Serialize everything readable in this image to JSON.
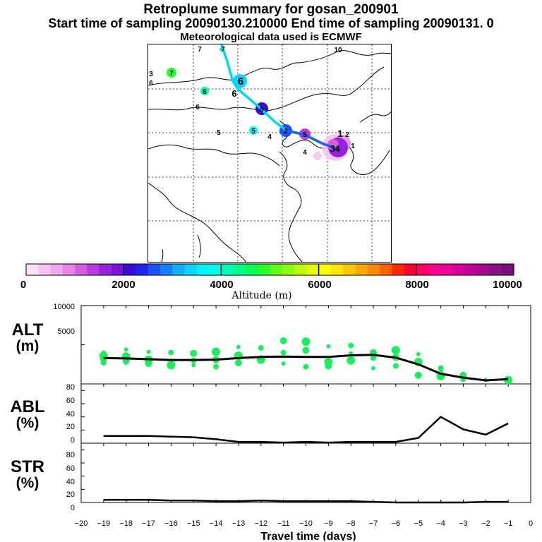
{
  "titles": {
    "line1": "Retroplume summary for gosan_200901",
    "line2": "Start time of sampling 20090130.210000      End time of sampling 20090131.     0",
    "line3": "Meteorological data used is ECMWF"
  },
  "map": {
    "point_labels": [
      "7",
      "7",
      "10",
      "3",
      "7",
      "6",
      "6",
      "6",
      "6",
      "8",
      "5",
      "5",
      "5",
      "6",
      "4",
      "2",
      "4",
      "1",
      "4",
      "3",
      "2",
      "1"
    ]
  },
  "colorbar": {
    "title": "Altitude (m)",
    "min": 0,
    "max": 10000,
    "tick_labels": [
      "0",
      "2000",
      "4000",
      "6000",
      "8000",
      "10000"
    ],
    "colors": [
      "#f9dff9",
      "#f5c2f5",
      "#eea6ee",
      "#e585e8",
      "#d45ee0",
      "#bb3ae0",
      "#9a1fe0",
      "#7a10e0",
      "#3c09d8",
      "#2323ee",
      "#1a52ff",
      "#1880ff",
      "#12b0ff",
      "#0ad4ff",
      "#00f2ff",
      "#00ffe8",
      "#00ffb5",
      "#00ff87",
      "#00ff55",
      "#2bff2b",
      "#5fff1a",
      "#8cff10",
      "#b8ff08",
      "#e4ff00",
      "#ffff00",
      "#ffe600",
      "#ffc800",
      "#ffaa00",
      "#ff8a00",
      "#ff6000",
      "#ff2a00",
      "#ff0034",
      "#ff0066",
      "#ff0090",
      "#ee0096",
      "#d8009a",
      "#be0496",
      "#a40a90",
      "#8c0f88",
      "#780f7c"
    ]
  },
  "chart_data": [
    {
      "type": "scatter",
      "panel": "ALT",
      "ylabel": [
        "ALT",
        "(m)"
      ],
      "ylim": [
        0,
        10000
      ],
      "yticks": [
        5000,
        10000
      ],
      "ytick_labels": [
        "5000",
        "10000"
      ],
      "mean_line": {
        "x": [
          -19,
          -18,
          -17,
          -16,
          -15,
          -14,
          -13,
          -12,
          -11,
          -10,
          -9,
          -8,
          -7,
          -6,
          -5,
          -4,
          -3,
          -2,
          -1
        ],
        "y": [
          3300,
          3250,
          3150,
          3050,
          3050,
          3100,
          3300,
          3450,
          3500,
          3450,
          3450,
          3650,
          3700,
          3350,
          2500,
          1300,
          800,
          450,
          600
        ]
      },
      "particles": [
        {
          "x": -19,
          "y": 4000
        },
        {
          "x": -19,
          "y": 3600
        },
        {
          "x": -19,
          "y": 3200
        },
        {
          "x": -19,
          "y": 2700
        },
        {
          "x": -18,
          "y": 4400
        },
        {
          "x": -18,
          "y": 3500
        },
        {
          "x": -18,
          "y": 3000
        },
        {
          "x": -18,
          "y": 2800
        },
        {
          "x": -17,
          "y": 4100
        },
        {
          "x": -17,
          "y": 3100
        },
        {
          "x": -17,
          "y": 2600
        },
        {
          "x": -16,
          "y": 4000
        },
        {
          "x": -16,
          "y": 3000
        },
        {
          "x": -16,
          "y": 2400
        },
        {
          "x": -15,
          "y": 3900
        },
        {
          "x": -15,
          "y": 3000
        },
        {
          "x": -15,
          "y": 2400
        },
        {
          "x": -14,
          "y": 4100
        },
        {
          "x": -14,
          "y": 3100
        },
        {
          "x": -14,
          "y": 2200
        },
        {
          "x": -13,
          "y": 4700
        },
        {
          "x": -13,
          "y": 3600
        },
        {
          "x": -13,
          "y": 2700
        },
        {
          "x": -12,
          "y": 4600
        },
        {
          "x": -12,
          "y": 3400
        },
        {
          "x": -12,
          "y": 3100
        },
        {
          "x": -11,
          "y": 5500
        },
        {
          "x": -11,
          "y": 4000
        },
        {
          "x": -11,
          "y": 2600
        },
        {
          "x": -10,
          "y": 5400
        },
        {
          "x": -10,
          "y": 4300
        },
        {
          "x": -10,
          "y": 2200
        },
        {
          "x": -9,
          "y": 4800
        },
        {
          "x": -9,
          "y": 2800
        },
        {
          "x": -9,
          "y": 2300
        },
        {
          "x": -8,
          "y": 4900
        },
        {
          "x": -8,
          "y": 3900
        },
        {
          "x": -8,
          "y": 3000
        },
        {
          "x": -7,
          "y": 4000
        },
        {
          "x": -7,
          "y": 3300
        },
        {
          "x": -7,
          "y": 2000
        },
        {
          "x": -6,
          "y": 4300
        },
        {
          "x": -6,
          "y": 3400
        },
        {
          "x": -6,
          "y": 2300
        },
        {
          "x": -5,
          "y": 3800
        },
        {
          "x": -5,
          "y": 2800
        },
        {
          "x": -5,
          "y": 1100
        },
        {
          "x": -4,
          "y": 2000
        },
        {
          "x": -4,
          "y": 1500
        },
        {
          "x": -4,
          "y": 1000
        },
        {
          "x": -3,
          "y": 1100
        },
        {
          "x": -3,
          "y": 600
        },
        {
          "x": -2,
          "y": 500
        },
        {
          "x": -1,
          "y": 500
        }
      ]
    },
    {
      "type": "line",
      "panel": "ABL",
      "ylabel": [
        "ABL",
        "(%)"
      ],
      "ylim": [
        0,
        90
      ],
      "yticks": [
        0,
        20,
        40,
        60,
        80
      ],
      "ytick_labels": [
        "0",
        "20",
        "40",
        "60",
        "80"
      ],
      "x": [
        -19,
        -18,
        -17,
        -16,
        -15,
        -14,
        -13,
        -12,
        -11,
        -10,
        -9,
        -8,
        -7,
        -6,
        -5,
        -4,
        -3,
        -2,
        -1
      ],
      "y": [
        11,
        11,
        11,
        10,
        9,
        6,
        2,
        2,
        1,
        2,
        1,
        2,
        2,
        2,
        8,
        40,
        21,
        13,
        30
      ]
    },
    {
      "type": "line",
      "panel": "STR",
      "ylabel": [
        "STR",
        "(%)"
      ],
      "ylim": [
        0,
        90
      ],
      "yticks": [
        0,
        20,
        40,
        60,
        80
      ],
      "ytick_labels": [
        "0",
        "20",
        "40",
        "60",
        "80"
      ],
      "x": [
        -19,
        -18,
        -17,
        -16,
        -15,
        -14,
        -13,
        -12,
        -11,
        -10,
        -9,
        -8,
        -7,
        -6,
        -5,
        -4,
        -3,
        -2,
        -1
      ],
      "y": [
        4,
        4,
        4,
        3,
        3,
        2,
        2,
        3,
        2,
        2,
        2,
        2,
        1,
        0,
        0,
        0,
        0,
        1,
        1
      ]
    }
  ],
  "x_axis": {
    "xlim": [
      -20,
      0
    ],
    "ticks": [
      -20,
      -19,
      -18,
      -17,
      -16,
      -15,
      -14,
      -13,
      -12,
      -11,
      -10,
      -9,
      -8,
      -7,
      -6,
      -5,
      -4,
      -3,
      -2,
      -1,
      0
    ],
    "tick_labels": [
      "−20",
      "−19",
      "−18",
      "−17",
      "−16",
      "−15",
      "−14",
      "−13",
      "−12",
      "−11",
      "−10",
      "−9",
      "−8",
      "−7",
      "−6",
      "−5",
      "−4",
      "−3",
      "−2",
      "−1",
      "0"
    ],
    "xlabel": "Travel time (days)"
  }
}
